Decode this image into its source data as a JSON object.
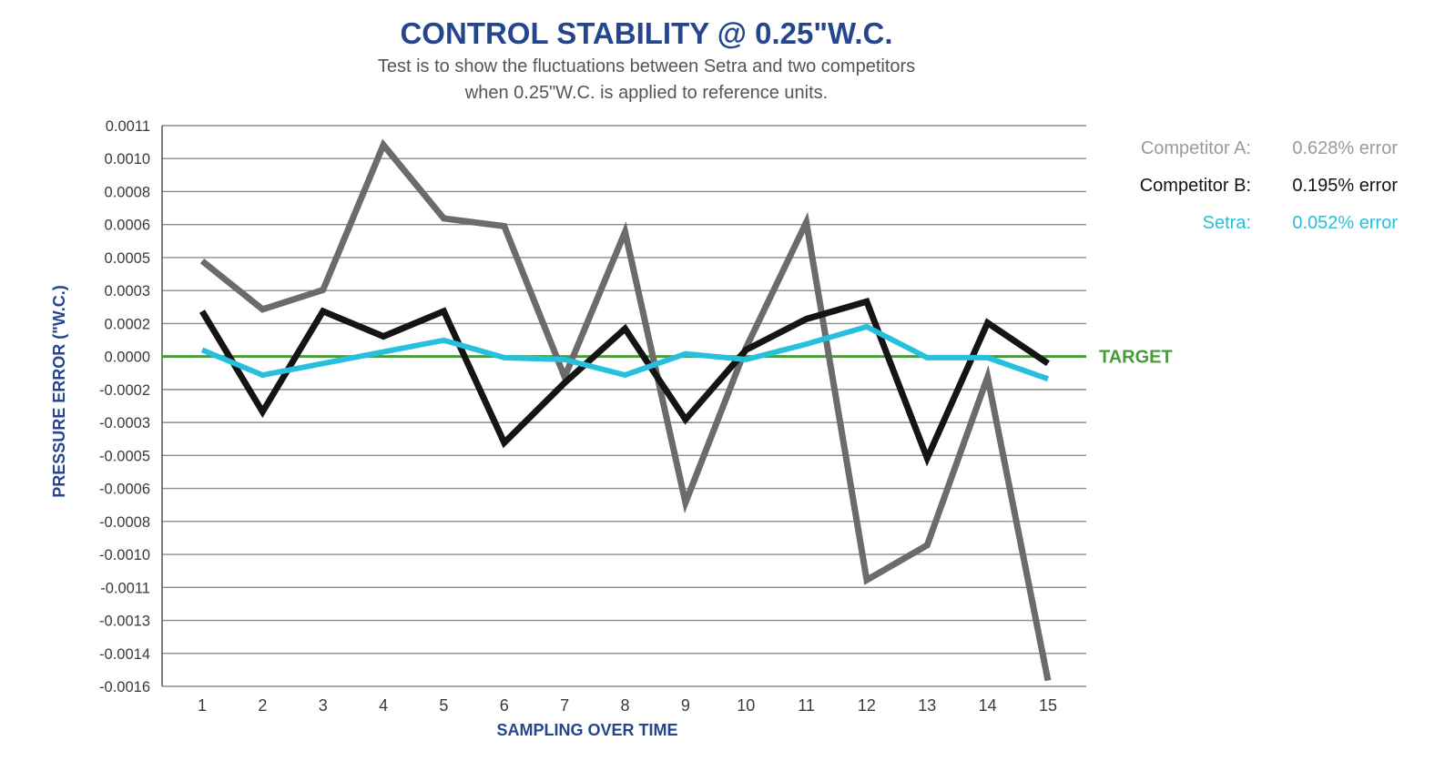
{
  "chart_data": {
    "type": "line",
    "title": "CONTROL STABILITY @ 0.25\"W.C.",
    "subtitle_lines": [
      "Test is to show the fluctuations between Setra and two competitors",
      "when 0.25\"W.C. is applied to reference units."
    ],
    "xlabel": "SAMPLING OVER TIME",
    "ylabel": "PRESSURE ERROR (\"W.C.)",
    "x": [
      1,
      2,
      3,
      4,
      5,
      6,
      7,
      8,
      9,
      10,
      11,
      12,
      13,
      14,
      15
    ],
    "x_tick_labels": [
      "1",
      "2",
      "3",
      "4",
      "5",
      "6",
      "7",
      "8",
      "9",
      "10",
      "11",
      "12",
      "13",
      "14",
      "15"
    ],
    "y_tick_labels": [
      "0.0011",
      "0.0010",
      "0.0008",
      "0.0006",
      "0.0005",
      "0.0003",
      "0.0002",
      "0.0000",
      "-0.0002",
      "-0.0003",
      "-0.0005",
      "-0.0006",
      "-0.0008",
      "-0.0010",
      "-0.0011",
      "-0.0013",
      "-0.0014",
      "-0.0016"
    ],
    "ylim": [
      -0.0017,
      0.0012
    ],
    "grid": true,
    "target": {
      "label": "TARGET",
      "value": 0.0,
      "color": "#4a9a3d"
    },
    "series": [
      {
        "name": "Competitor A",
        "color": "#6b6b6b",
        "values": [
          0.0005,
          0.00025,
          0.00035,
          0.0011,
          0.00072,
          0.00068,
          -0.0001,
          0.00065,
          -0.00075,
          5e-05,
          0.0007,
          -0.00115,
          -0.00097,
          -0.0001,
          -0.00167
        ]
      },
      {
        "name": "Competitor B",
        "color": "#141414",
        "values": [
          0.00024,
          -0.00028,
          0.00024,
          0.00011,
          0.00024,
          -0.00044,
          -0.00013,
          0.00015,
          -0.00032,
          4e-05,
          0.0002,
          0.00029,
          -0.00052,
          0.00018,
          -3e-05
        ]
      },
      {
        "name": "Setra",
        "color": "#27c0dc",
        "values": [
          4e-05,
          -9e-05,
          -3e-05,
          3e-05,
          9e-05,
          0.0,
          -1e-05,
          -9e-05,
          2e-05,
          -1e-05,
          7e-05,
          0.00016,
          0.0,
          0.0,
          -0.00011
        ]
      }
    ],
    "legend": [
      {
        "label": "Competitor A:",
        "value": "0.628% error",
        "color": "#9a9a9a"
      },
      {
        "label": "Competitor B:",
        "value": "0.195% error",
        "color": "#141414"
      },
      {
        "label": "Setra:",
        "value": "0.052% error",
        "color": "#27c0dc"
      }
    ],
    "legend_position": "top-right"
  }
}
